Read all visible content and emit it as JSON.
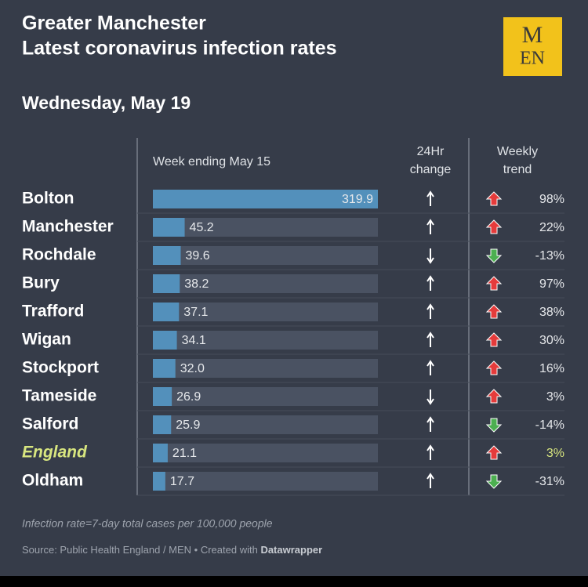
{
  "header": {
    "title_line1": "Greater Manchester",
    "title_line2": "Latest coronavirus infection rates",
    "subtitle": "Wednesday, May 19",
    "logo_top": "M",
    "logo_bottom": "EN"
  },
  "table": {
    "col_rate": "Week ending May 15",
    "col_change_line1": "24Hr",
    "col_change_line2": "change",
    "col_trend_line1": "Weekly",
    "col_trend_line2": "trend",
    "rows": [
      {
        "name": "Bolton",
        "rate": "319.9",
        "change": "up",
        "trend": "98%",
        "trend_direction": "up"
      },
      {
        "name": "Manchester",
        "rate": "45.2",
        "change": "up",
        "trend": "22%",
        "trend_direction": "up"
      },
      {
        "name": "Rochdale",
        "rate": "39.6",
        "change": "down",
        "trend": "-13%",
        "trend_direction": "down"
      },
      {
        "name": "Bury",
        "rate": "38.2",
        "change": "up",
        "trend": "97%",
        "trend_direction": "up"
      },
      {
        "name": "Trafford",
        "rate": "37.1",
        "change": "up",
        "trend": "38%",
        "trend_direction": "up"
      },
      {
        "name": "Wigan",
        "rate": "34.1",
        "change": "up",
        "trend": "30%",
        "trend_direction": "up"
      },
      {
        "name": "Stockport",
        "rate": "32.0",
        "change": "up",
        "trend": "16%",
        "trend_direction": "up"
      },
      {
        "name": "Tameside",
        "rate": "26.9",
        "change": "down",
        "trend": "3%",
        "trend_direction": "up"
      },
      {
        "name": "Salford",
        "rate": "25.9",
        "change": "up",
        "trend": "-14%",
        "trend_direction": "down"
      },
      {
        "name": "England",
        "rate": "21.1",
        "change": "up",
        "trend": "3%",
        "trend_direction": "up",
        "highlight": true
      },
      {
        "name": "Oldham",
        "rate": "17.7",
        "change": "up",
        "trend": "-31%",
        "trend_direction": "down"
      }
    ]
  },
  "footer": {
    "note": "Infection rate=7-day total cases per 100,000 people",
    "source": "Source: Public Health England / MEN • Created with",
    "source_tool": "Datawrapper"
  }
}
